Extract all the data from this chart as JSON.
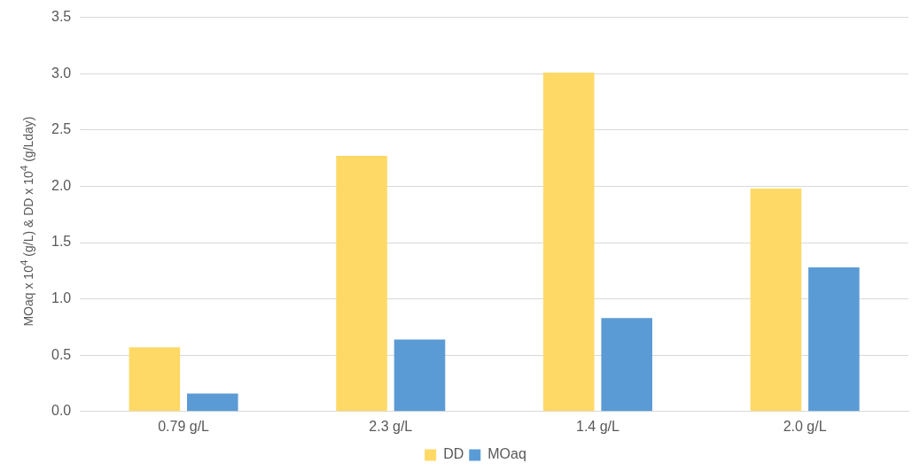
{
  "chart_data": {
    "type": "bar",
    "ylabel": "MOaq x 10$^{4}$  (g/L) & DD x 10$^{4}$  (g/Lday)",
    "categories": [
      "0.79 g/L",
      "2.3 g/L",
      "1.4 g/L",
      "2.0 g/L"
    ],
    "series": [
      {
        "name": "DD",
        "color": "#ffd966",
        "values": [
          0.57,
          2.27,
          3.01,
          1.98
        ]
      },
      {
        "name": "MOaq",
        "color": "#5b9bd5",
        "values": [
          0.16,
          0.64,
          0.83,
          1.28
        ]
      }
    ],
    "ylim": [
      0,
      3.5
    ],
    "yticks": [
      {
        "value": 0,
        "label": "0.0"
      },
      {
        "value": 0.5,
        "label": "0.5"
      },
      {
        "value": 1,
        "label": "1.0"
      },
      {
        "value": 1.5,
        "label": "1.5"
      },
      {
        "value": 2,
        "label": "2.0"
      },
      {
        "value": 2.5,
        "label": "2.5"
      },
      {
        "value": 3,
        "label": "3.0"
      },
      {
        "value": 3.5,
        "label": "3.5"
      }
    ],
    "grid": "y",
    "legend": "bottom"
  }
}
